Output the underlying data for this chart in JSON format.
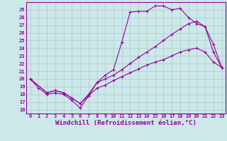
{
  "xlabel": "Windchill (Refroidissement éolien,°C)",
  "bg_color": "#cce8e8",
  "line_color": "#990099",
  "grid_color": "#aacccc",
  "xlim": [
    -0.5,
    23.5
  ],
  "ylim": [
    15.5,
    30.0
  ],
  "xticks": [
    0,
    1,
    2,
    3,
    4,
    5,
    6,
    7,
    8,
    9,
    10,
    11,
    12,
    13,
    14,
    15,
    16,
    17,
    18,
    19,
    20,
    21,
    22,
    23
  ],
  "yticks": [
    16,
    17,
    18,
    19,
    20,
    21,
    22,
    23,
    24,
    25,
    26,
    27,
    28,
    29
  ],
  "line1_x": [
    0,
    1,
    2,
    3,
    4,
    5,
    6,
    7,
    8,
    9,
    10,
    11,
    12,
    13,
    14,
    15,
    16,
    17,
    18,
    19,
    20,
    21,
    22,
    23
  ],
  "line1_y": [
    20.0,
    18.8,
    18.0,
    18.2,
    18.0,
    17.2,
    16.2,
    17.8,
    19.5,
    20.5,
    21.2,
    24.8,
    28.7,
    28.8,
    28.8,
    29.5,
    29.5,
    29.0,
    29.2,
    28.0,
    27.2,
    26.8,
    23.5,
    21.5
  ],
  "line2_x": [
    0,
    2,
    3,
    4,
    5,
    6,
    7,
    8,
    9,
    10,
    11,
    12,
    13,
    14,
    15,
    16,
    17,
    18,
    19,
    20,
    21,
    22,
    23
  ],
  "line2_y": [
    20.0,
    18.2,
    18.5,
    18.2,
    17.5,
    16.8,
    18.0,
    19.5,
    20.0,
    20.5,
    21.2,
    22.0,
    22.8,
    23.5,
    24.2,
    25.0,
    25.8,
    26.5,
    27.2,
    27.5,
    26.8,
    24.5,
    21.5
  ],
  "line3_x": [
    0,
    2,
    3,
    4,
    5,
    6,
    7,
    8,
    9,
    10,
    11,
    12,
    13,
    14,
    15,
    16,
    17,
    18,
    19,
    20,
    21,
    22,
    23
  ],
  "line3_y": [
    20.0,
    18.2,
    18.5,
    18.2,
    17.5,
    16.8,
    17.8,
    18.8,
    19.2,
    19.8,
    20.3,
    20.8,
    21.3,
    21.8,
    22.2,
    22.5,
    23.0,
    23.5,
    23.8,
    24.0,
    23.5,
    22.2,
    21.5
  ],
  "tick_fontsize": 5.0,
  "xlabel_fontsize": 6.5,
  "marker": "+",
  "markersize": 3.5,
  "linewidth": 0.8
}
